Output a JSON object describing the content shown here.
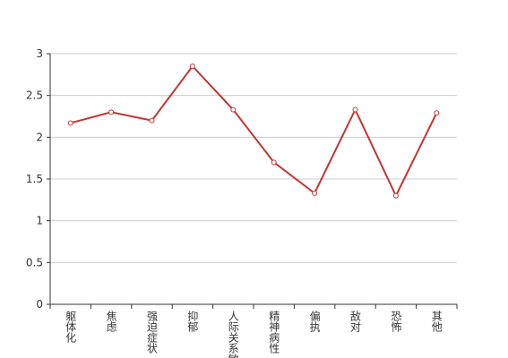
{
  "chart_data": {
    "type": "line",
    "categories": [
      "躯体化",
      "焦虑",
      "强迫症状",
      "抑郁",
      "人际关系敏感",
      "精神病性",
      "偏执",
      "敌对",
      "恐怖",
      "其他"
    ],
    "values": [
      2.17,
      2.3,
      2.2,
      2.85,
      2.33,
      1.7,
      1.33,
      2.33,
      1.3,
      2.29
    ],
    "color": "#c23531",
    "ylim": [
      0,
      3
    ],
    "yticks": [
      0,
      0.5,
      1,
      1.5,
      2,
      2.5,
      3
    ],
    "grid": true
  }
}
